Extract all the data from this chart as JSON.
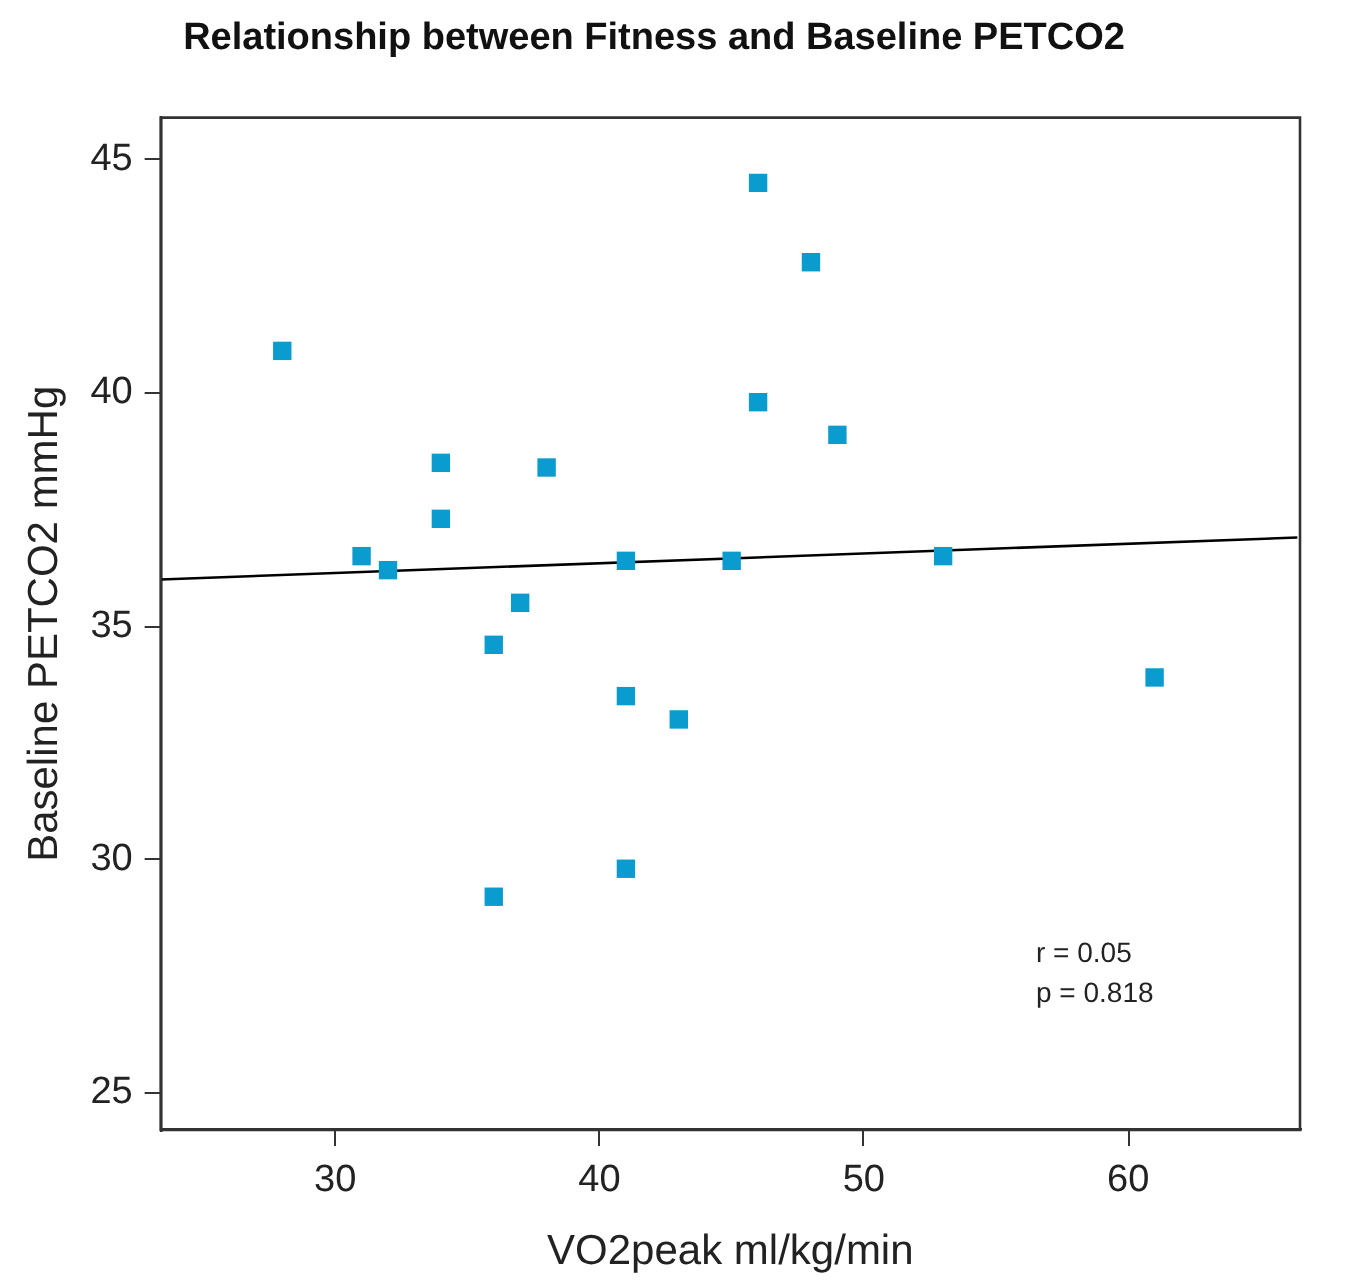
{
  "chart_data": {
    "type": "scatter",
    "title": "Relationship between Fitness and Baseline PETCO2",
    "xlabel": "VO2peak ml/kg/min",
    "ylabel": "Baseline PETCO2 mmHg",
    "xlim": [
      23.4,
      66.5
    ],
    "ylim": [
      24.2,
      45.9
    ],
    "xticks": [
      30,
      40,
      50,
      60
    ],
    "yticks": [
      25,
      30,
      35,
      40,
      45
    ],
    "grid": false,
    "legend": false,
    "marker": "square",
    "series": [
      {
        "color": "#0a9bcf",
        "x": [
          28,
          31,
          32,
          34,
          34,
          38,
          41,
          45,
          37,
          46,
          48,
          46,
          49,
          53,
          36,
          41,
          43,
          61,
          41,
          36
        ],
        "values": [
          40.9,
          36.5,
          36.2,
          38.5,
          37.3,
          38.4,
          36.4,
          36.4,
          35.5,
          44.5,
          42.8,
          39.8,
          39.1,
          36.5,
          34.6,
          33.5,
          33.0,
          33.9,
          29.8,
          29.2
        ]
      },
      {
        "type": "line",
        "color": "#000000",
        "marker": "none",
        "x": [
          23.4,
          66.4
        ],
        "values": [
          36.0,
          36.9
        ]
      }
    ],
    "annotations": [
      "r = 0.05",
      "p = 0.818"
    ]
  }
}
